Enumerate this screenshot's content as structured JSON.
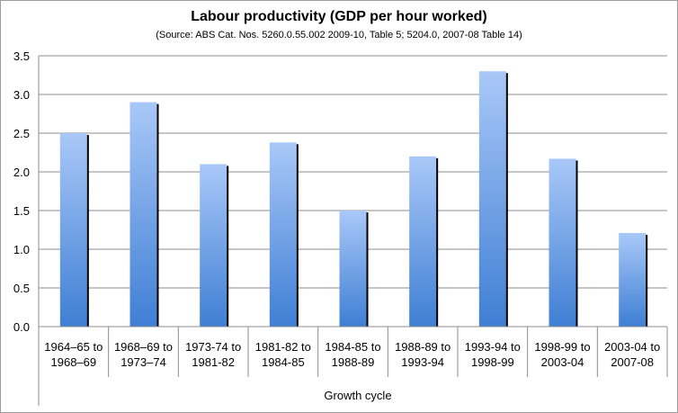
{
  "chart_data": {
    "type": "bar",
    "title": "Labour productivity (GDP per hour worked)",
    "subtitle": "(Source: ABS Cat. Nos. 5260.0.55.002 2009-10, Table 5; 5204.0, 2007-08 Table 14)",
    "xlabel": "Growth cycle",
    "ylabel": "",
    "categories": [
      [
        "1964–65 to",
        "1968–69"
      ],
      [
        "1968–69 to",
        "1973–74"
      ],
      [
        "1973-74 to",
        "1981-82"
      ],
      [
        "1981-82 to",
        "1984-85"
      ],
      [
        "1984-85 to",
        "1988-89"
      ],
      [
        "1988-89 to",
        "1993-94"
      ],
      [
        "1993-94 to",
        "1998-99"
      ],
      [
        "1998-99 to",
        "2003-04"
      ],
      [
        "2003-04 to",
        "2007-08"
      ]
    ],
    "values": [
      2.5,
      2.9,
      2.1,
      2.38,
      1.5,
      2.2,
      3.3,
      2.17,
      1.21
    ],
    "ylim": [
      0,
      3.5
    ],
    "yticks": [
      "0.0",
      "0.5",
      "1.0",
      "1.5",
      "2.0",
      "2.5",
      "3.0",
      "3.5"
    ],
    "grid": true,
    "legend": "none",
    "colors": {
      "bar_top": "#a9c8f8",
      "bar_bottom": "#3f7fd4",
      "bar_shadow": "#000000",
      "grid": "#8c8c8c",
      "axis": "#8c8c8c"
    }
  }
}
